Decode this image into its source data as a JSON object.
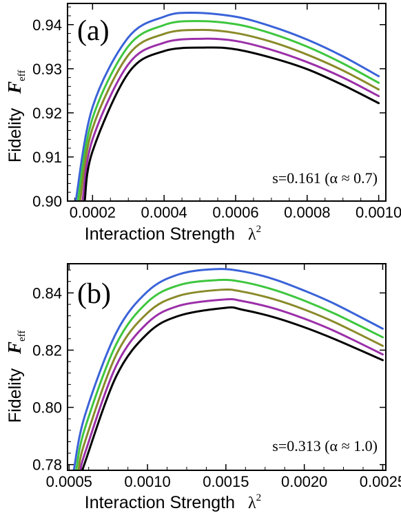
{
  "chart_data": [
    {
      "type": "line",
      "panel_label": "(a)",
      "xlabel": "Interaction Strength",
      "xlabel_symbol": "λ",
      "xlabel_symbol_sup": "2",
      "ylabel": "Fidelity",
      "ylabel_symbol": "F",
      "ylabel_symbol_sub": "eff",
      "annotation": "s=0.161 (α ≈ 0.7)",
      "xlim": [
        0.00013,
        0.00102
      ],
      "ylim": [
        0.9,
        0.9448
      ],
      "xticks": [
        0.0002,
        0.0004,
        0.0006,
        0.0008,
        0.001
      ],
      "xtick_labels": [
        "0.0002",
        "0.0004",
        "0.0006",
        "0.0008",
        "0.0010"
      ],
      "yticks": [
        0.9,
        0.91,
        0.92,
        0.93,
        0.94
      ],
      "ytick_labels": [
        "0.90",
        "0.91",
        "0.92",
        "0.93",
        "0.94"
      ],
      "grid": false,
      "series": [
        {
          "color": "#3a63d8",
          "x": [
            0.000153,
            0.0002,
            0.0003,
            0.0004,
            0.00048,
            0.0006,
            0.0007,
            0.0008,
            0.0009,
            0.001
          ],
          "y": [
            0.9,
            0.9213,
            0.9371,
            0.9418,
            0.9427,
            0.9418,
            0.9396,
            0.9366,
            0.9328,
            0.9283
          ]
        },
        {
          "color": "#3ec63e",
          "x": [
            0.000159,
            0.0002,
            0.0003,
            0.0004,
            0.00049,
            0.0006,
            0.0007,
            0.0008,
            0.0009,
            0.001
          ],
          "y": [
            0.9,
            0.9188,
            0.9351,
            0.9399,
            0.9408,
            0.9401,
            0.938,
            0.935,
            0.9312,
            0.9268
          ]
        },
        {
          "color": "#8a8a2a",
          "x": [
            0.000165,
            0.0002,
            0.0003,
            0.0004,
            0.0005,
            0.0006,
            0.0007,
            0.0008,
            0.0009,
            0.001
          ],
          "y": [
            0.9,
            0.9165,
            0.9331,
            0.9379,
            0.9388,
            0.9381,
            0.9361,
            0.9332,
            0.9296,
            0.9253
          ]
        },
        {
          "color": "#9b2fa8",
          "x": [
            0.000172,
            0.0002,
            0.0003,
            0.0004,
            0.00051,
            0.0006,
            0.0007,
            0.0008,
            0.0009,
            0.001
          ],
          "y": [
            0.9,
            0.914,
            0.931,
            0.9359,
            0.9368,
            0.9363,
            0.9343,
            0.9315,
            0.928,
            0.9238
          ]
        },
        {
          "color": "#000000",
          "x": [
            0.000178,
            0.0002,
            0.0003,
            0.0004,
            0.00052,
            0.0006,
            0.0007,
            0.0008,
            0.0009,
            0.001
          ],
          "y": [
            0.9,
            0.9113,
            0.929,
            0.934,
            0.9348,
            0.9344,
            0.9325,
            0.9299,
            0.9263,
            0.9222
          ]
        }
      ]
    },
    {
      "type": "line",
      "panel_label": "(b)",
      "xlabel": "Interaction Strength",
      "xlabel_symbol": "λ",
      "xlabel_symbol_sup": "2",
      "ylabel": "Fidelity",
      "ylabel_symbol": "F",
      "ylabel_symbol_sub": "eff",
      "annotation": "s=0.313 (α ≈ 1.0)",
      "xlim": [
        0.00049,
        0.00252
      ],
      "ylim": [
        0.778,
        0.8502
      ],
      "xticks": [
        0.0005,
        0.001,
        0.0015,
        0.002,
        0.0025
      ],
      "xtick_labels": [
        "0.0005",
        "0.0010",
        "0.0015",
        "0.0020",
        "0.0025"
      ],
      "yticks": [
        0.78,
        0.8,
        0.82,
        0.84
      ],
      "ytick_labels": [
        "0.78",
        "0.80",
        "0.82",
        "0.84"
      ],
      "grid": false,
      "series": [
        {
          "color": "#3a63d8",
          "x": [
            0.00053,
            0.0006,
            0.0008,
            0.001,
            0.0012,
            0.00143,
            0.0016,
            0.0018,
            0.002,
            0.0022,
            0.0025
          ],
          "y": [
            0.778,
            0.797,
            0.826,
            0.8405,
            0.8465,
            0.8483,
            0.8476,
            0.8449,
            0.8408,
            0.836,
            0.8275
          ]
        },
        {
          "color": "#3ec63e",
          "x": [
            0.000545,
            0.0006,
            0.0008,
            0.001,
            0.0012,
            0.00145,
            0.0016,
            0.0018,
            0.002,
            0.0022,
            0.0025
          ],
          "y": [
            0.778,
            0.7925,
            0.822,
            0.8368,
            0.8427,
            0.8445,
            0.8439,
            0.8412,
            0.8373,
            0.8326,
            0.8245
          ]
        },
        {
          "color": "#8a8a2a",
          "x": [
            0.00056,
            0.0006,
            0.0008,
            0.001,
            0.0012,
            0.00147,
            0.0016,
            0.0018,
            0.002,
            0.0022,
            0.0025
          ],
          "y": [
            0.778,
            0.7878,
            0.8183,
            0.833,
            0.839,
            0.8411,
            0.8405,
            0.8379,
            0.8342,
            0.8296,
            0.8215
          ]
        },
        {
          "color": "#9b2fa8",
          "x": [
            0.000575,
            0.0006,
            0.0008,
            0.001,
            0.0012,
            0.00149,
            0.0016,
            0.0018,
            0.002,
            0.0022,
            0.0025
          ],
          "y": [
            0.778,
            0.7838,
            0.8145,
            0.8295,
            0.8355,
            0.8377,
            0.8372,
            0.8347,
            0.831,
            0.8265,
            0.8185
          ]
        },
        {
          "color": "#000000",
          "x": [
            0.00059,
            0.0006,
            0.0008,
            0.001,
            0.0012,
            0.0015,
            0.0016,
            0.0018,
            0.002,
            0.0022,
            0.0025
          ],
          "y": [
            0.778,
            0.7805,
            0.8108,
            0.8258,
            0.832,
            0.8348,
            0.8342,
            0.8316,
            0.828,
            0.8237,
            0.8165
          ]
        }
      ]
    }
  ]
}
